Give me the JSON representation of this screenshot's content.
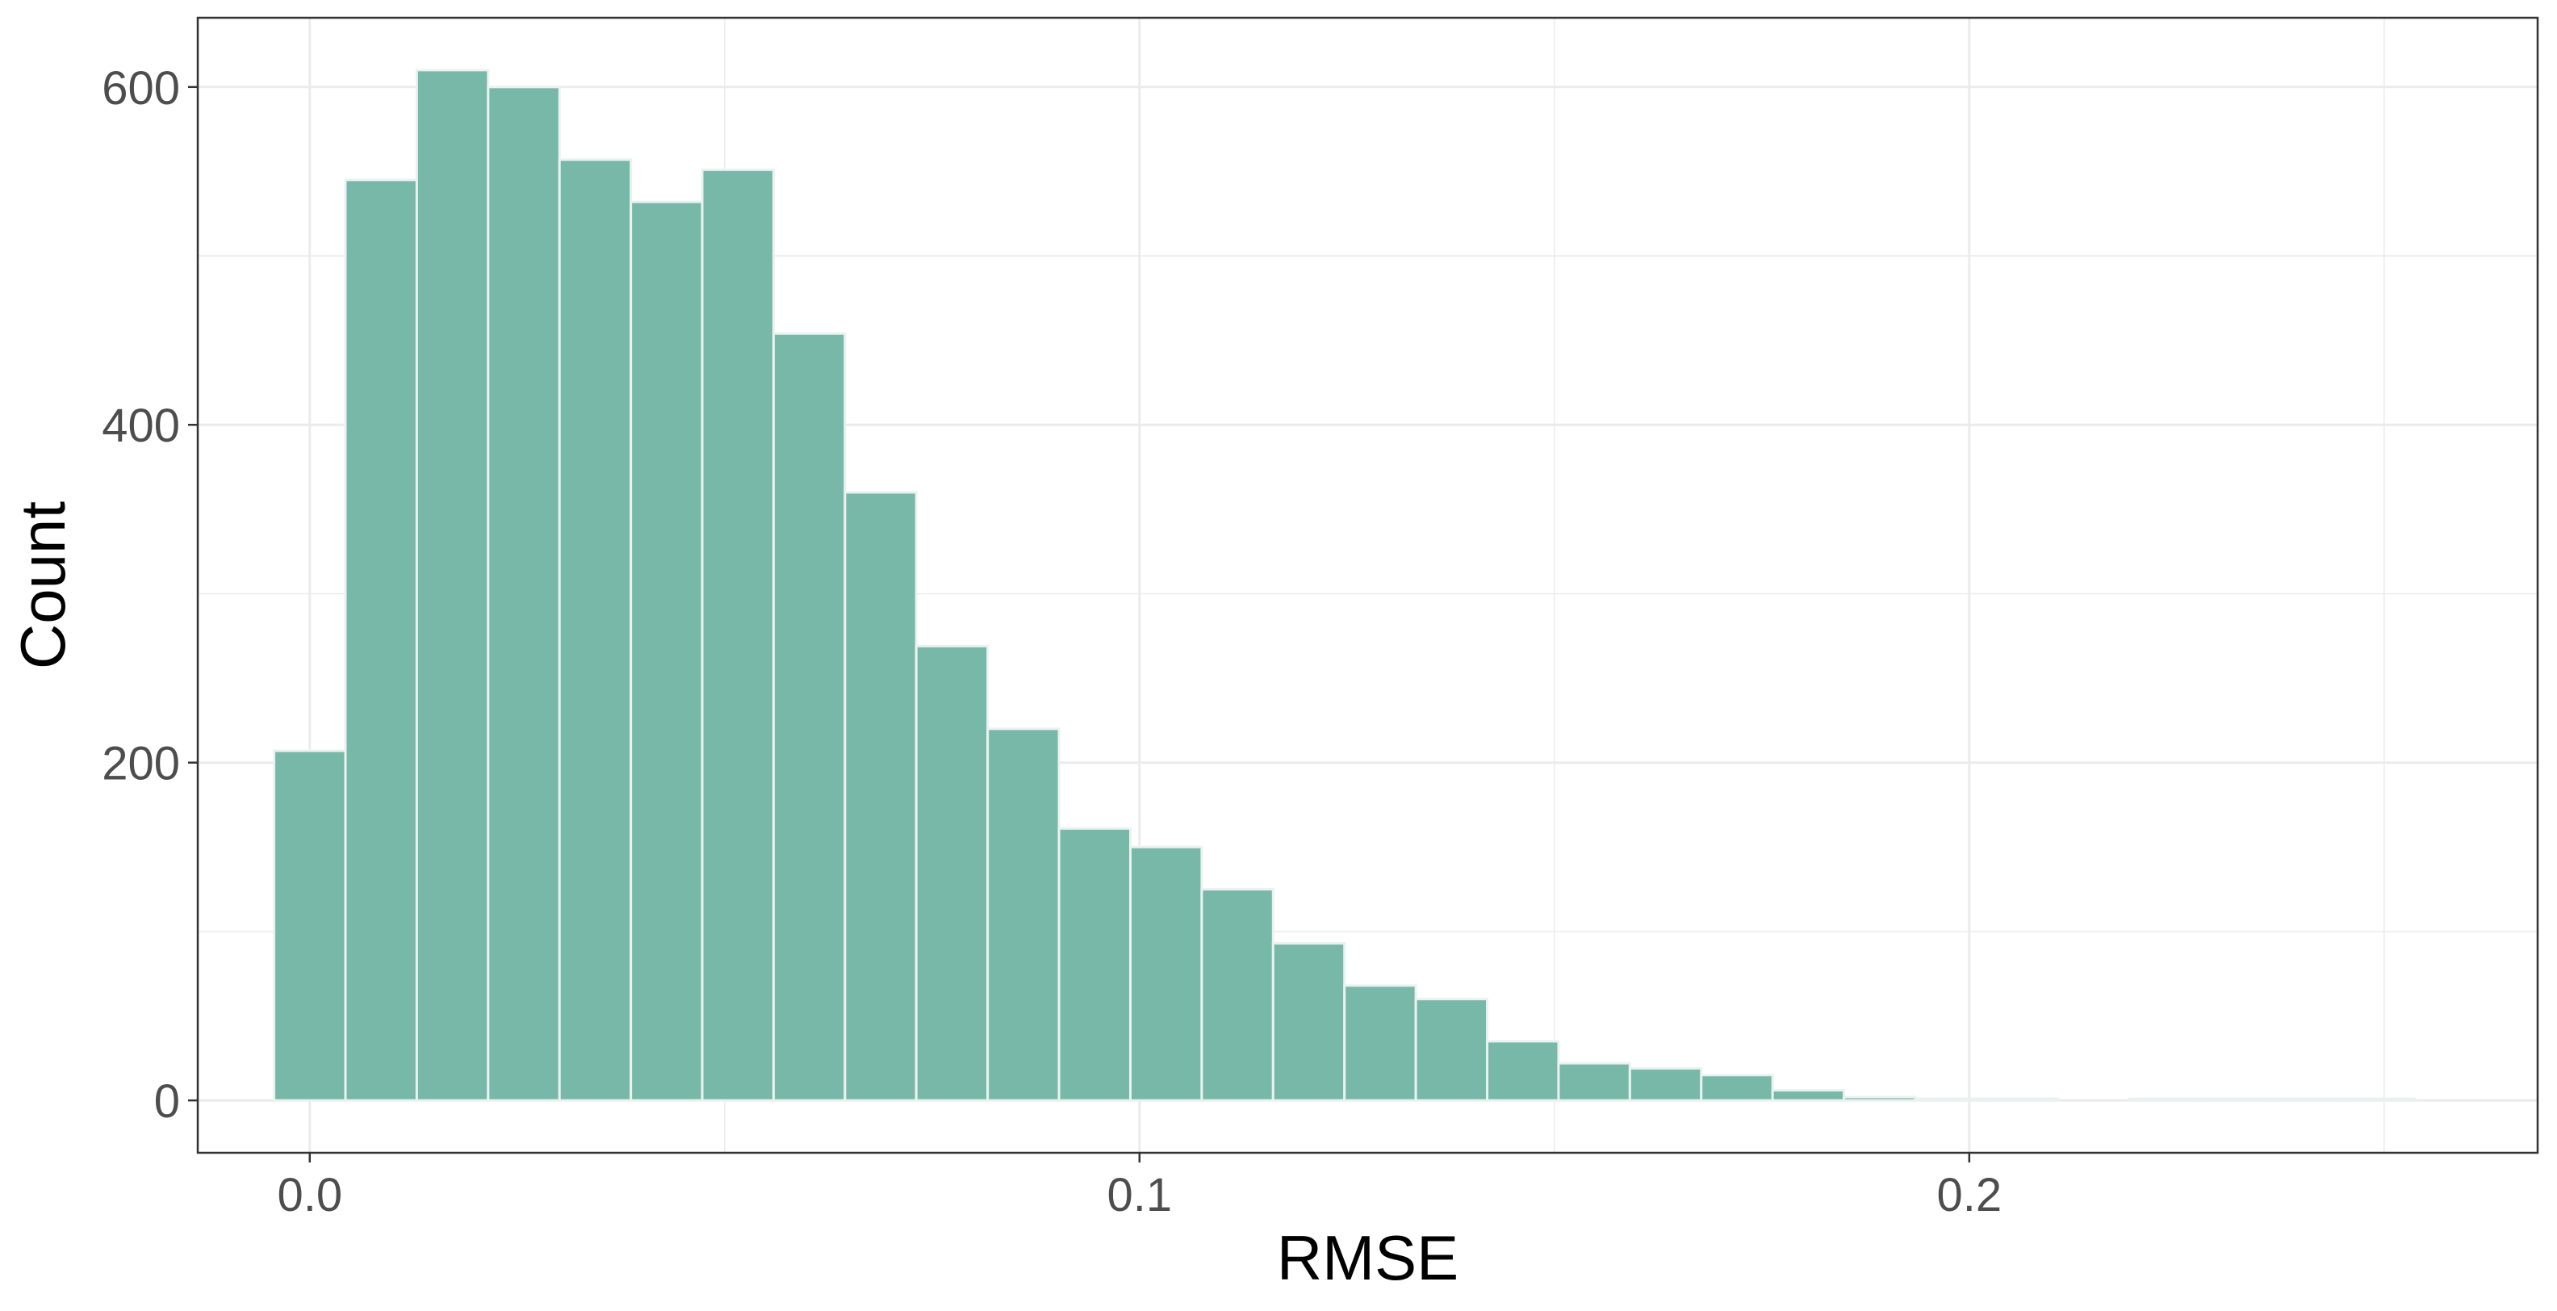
{
  "chart_data": {
    "type": "bar",
    "subtype": "histogram",
    "xlabel": "RMSE",
    "ylabel": "Count",
    "xlim": [
      -0.0135,
      0.2685
    ],
    "ylim": [
      -31,
      641
    ],
    "x_ticks": [
      0.0,
      0.1,
      0.2
    ],
    "x_tick_labels": [
      "0.0",
      "0.1",
      "0.2"
    ],
    "y_ticks": [
      0,
      200,
      400,
      600
    ],
    "y_tick_labels": [
      "0",
      "200",
      "400",
      "600"
    ],
    "x_minor_grid": [
      0.05,
      0.15,
      0.25
    ],
    "y_minor_grid": [
      100,
      300,
      500
    ],
    "grid": true,
    "bin_width": 0.0086,
    "bin_centers": [
      0.0,
      0.0086,
      0.0172,
      0.0258,
      0.0344,
      0.043,
      0.0516,
      0.0602,
      0.0688,
      0.0774,
      0.086,
      0.0946,
      0.1032,
      0.1118,
      0.1204,
      0.129,
      0.1376,
      0.1462,
      0.1548,
      0.1634,
      0.172,
      0.1806,
      0.1892,
      0.1978,
      0.2064,
      0.215,
      0.2236,
      0.2322,
      0.2408,
      0.2494
    ],
    "values": [
      207,
      545,
      610,
      600,
      557,
      532,
      551,
      454,
      360,
      269,
      220,
      161,
      150,
      125,
      93,
      68,
      60,
      35,
      22,
      19,
      15,
      6,
      2,
      1,
      1,
      0,
      1,
      1,
      1,
      1
    ],
    "colors": {
      "bar_fill": "#78b8a8",
      "bar_stroke": "#eaf2f0",
      "grid": "#ebebeb",
      "panel_border": "#333333"
    }
  }
}
